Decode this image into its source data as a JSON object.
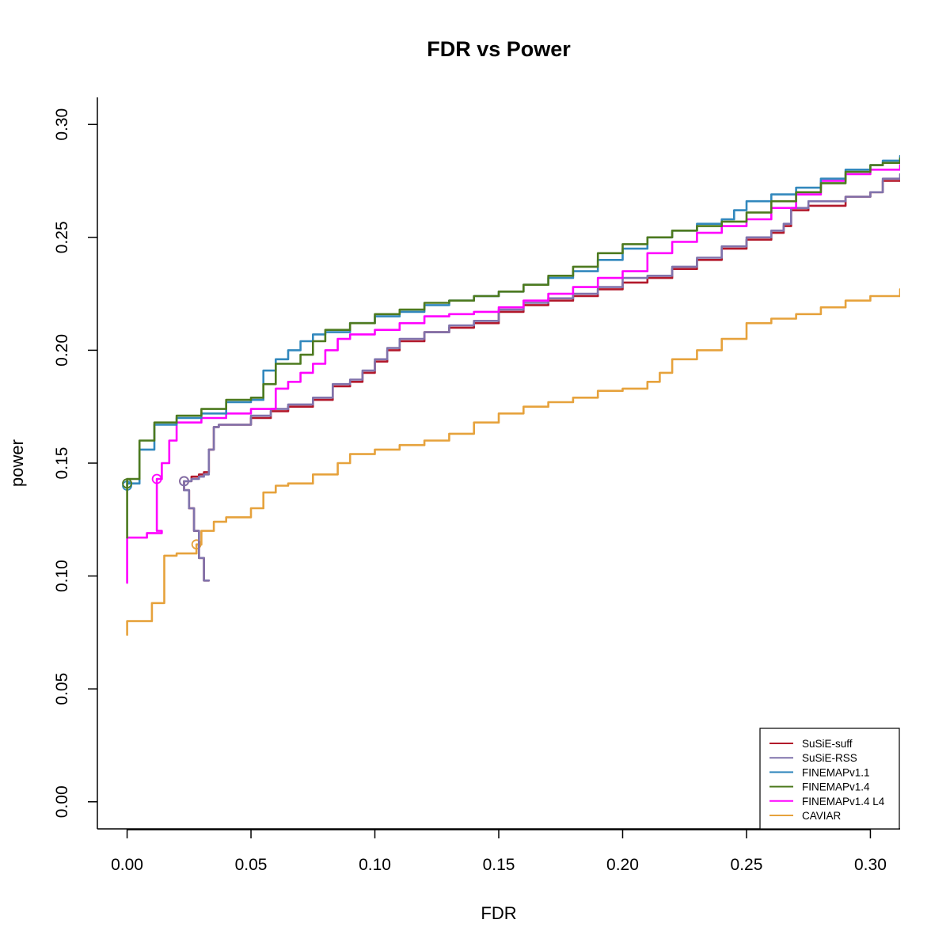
{
  "chart_data": {
    "type": "line",
    "title": "FDR vs Power",
    "xlabel": "FDR",
    "ylabel": "power",
    "xlim": [
      -0.012,
      0.312
    ],
    "ylim": [
      -0.012,
      0.312
    ],
    "xticks": [
      "0.00",
      "0.05",
      "0.10",
      "0.15",
      "0.20",
      "0.25",
      "0.30"
    ],
    "xtick_values": [
      0,
      0.05,
      0.1,
      0.15,
      0.2,
      0.25,
      0.3
    ],
    "yticks": [
      "0.00",
      "0.05",
      "0.10",
      "0.15",
      "0.20",
      "0.25",
      "0.30"
    ],
    "ytick_values": [
      0,
      0.05,
      0.1,
      0.15,
      0.2,
      0.25,
      0.3
    ],
    "grid": false,
    "legend_position": "bottom-right",
    "series": [
      {
        "name": "SuSiE-suff",
        "color": "#b2182b",
        "marker": [
          0.023,
          0.142
        ],
        "x": [
          0.033,
          0.031,
          0.029,
          0.027,
          0.025,
          0.023,
          0.026,
          0.029,
          0.031,
          0.033,
          0.035,
          0.037,
          0.05,
          0.058,
          0.065,
          0.075,
          0.083,
          0.09,
          0.095,
          0.1,
          0.105,
          0.11,
          0.12,
          0.13,
          0.14,
          0.15,
          0.16,
          0.17,
          0.18,
          0.19,
          0.2,
          0.21,
          0.22,
          0.23,
          0.24,
          0.25,
          0.26,
          0.265,
          0.268,
          0.275,
          0.29,
          0.3,
          0.305,
          0.312
        ],
        "y": [
          0.098,
          0.108,
          0.12,
          0.13,
          0.138,
          0.142,
          0.144,
          0.145,
          0.146,
          0.156,
          0.166,
          0.167,
          0.17,
          0.173,
          0.175,
          0.178,
          0.184,
          0.186,
          0.19,
          0.195,
          0.2,
          0.204,
          0.208,
          0.21,
          0.212,
          0.217,
          0.22,
          0.222,
          0.224,
          0.227,
          0.23,
          0.232,
          0.236,
          0.24,
          0.245,
          0.249,
          0.252,
          0.255,
          0.262,
          0.264,
          0.268,
          0.27,
          0.275,
          0.275
        ]
      },
      {
        "name": "SuSiE-RSS",
        "color": "#8073ac",
        "marker": [
          0.023,
          0.142
        ],
        "x": [
          0.033,
          0.031,
          0.029,
          0.027,
          0.025,
          0.023,
          0.026,
          0.029,
          0.031,
          0.033,
          0.035,
          0.037,
          0.05,
          0.058,
          0.065,
          0.075,
          0.083,
          0.09,
          0.095,
          0.1,
          0.105,
          0.11,
          0.12,
          0.13,
          0.14,
          0.15,
          0.16,
          0.17,
          0.18,
          0.19,
          0.2,
          0.21,
          0.22,
          0.23,
          0.24,
          0.25,
          0.26,
          0.265,
          0.268,
          0.275,
          0.29,
          0.3,
          0.305,
          0.312
        ],
        "y": [
          0.098,
          0.108,
          0.12,
          0.13,
          0.138,
          0.142,
          0.143,
          0.144,
          0.145,
          0.156,
          0.166,
          0.167,
          0.171,
          0.174,
          0.176,
          0.179,
          0.185,
          0.187,
          0.191,
          0.196,
          0.201,
          0.205,
          0.208,
          0.211,
          0.213,
          0.218,
          0.221,
          0.223,
          0.225,
          0.228,
          0.232,
          0.233,
          0.237,
          0.241,
          0.246,
          0.25,
          0.253,
          0.256,
          0.263,
          0.266,
          0.268,
          0.27,
          0.276,
          0.278
        ]
      },
      {
        "name": "FINEMAPv1.1",
        "color": "#3288bd",
        "marker": [
          0.0,
          0.14
        ],
        "x": [
          0.0,
          0.0,
          0.005,
          0.011,
          0.02,
          0.03,
          0.04,
          0.05,
          0.055,
          0.06,
          0.065,
          0.07,
          0.075,
          0.08,
          0.09,
          0.1,
          0.11,
          0.12,
          0.13,
          0.14,
          0.15,
          0.16,
          0.17,
          0.18,
          0.19,
          0.2,
          0.21,
          0.22,
          0.23,
          0.24,
          0.245,
          0.25,
          0.26,
          0.27,
          0.28,
          0.29,
          0.3,
          0.305,
          0.312
        ],
        "y": [
          0.14,
          0.141,
          0.156,
          0.167,
          0.17,
          0.172,
          0.177,
          0.178,
          0.191,
          0.196,
          0.2,
          0.204,
          0.207,
          0.208,
          0.212,
          0.215,
          0.217,
          0.22,
          0.222,
          0.224,
          0.226,
          0.229,
          0.232,
          0.235,
          0.24,
          0.245,
          0.25,
          0.253,
          0.256,
          0.258,
          0.262,
          0.266,
          0.269,
          0.272,
          0.276,
          0.28,
          0.282,
          0.284,
          0.286
        ]
      },
      {
        "name": "FINEMAPv1.4",
        "color": "#4d7a1f",
        "marker": [
          0.0,
          0.141
        ],
        "x": [
          0.0,
          0.0,
          0.005,
          0.011,
          0.02,
          0.03,
          0.04,
          0.05,
          0.055,
          0.06,
          0.07,
          0.075,
          0.08,
          0.09,
          0.1,
          0.11,
          0.12,
          0.13,
          0.14,
          0.15,
          0.16,
          0.17,
          0.18,
          0.19,
          0.2,
          0.21,
          0.22,
          0.23,
          0.24,
          0.25,
          0.26,
          0.27,
          0.28,
          0.29,
          0.3,
          0.305,
          0.312
        ],
        "y": [
          0.117,
          0.143,
          0.16,
          0.168,
          0.171,
          0.174,
          0.178,
          0.179,
          0.185,
          0.194,
          0.198,
          0.204,
          0.209,
          0.212,
          0.216,
          0.218,
          0.221,
          0.222,
          0.224,
          0.226,
          0.229,
          0.233,
          0.237,
          0.243,
          0.247,
          0.25,
          0.253,
          0.255,
          0.257,
          0.261,
          0.266,
          0.27,
          0.274,
          0.279,
          0.282,
          0.283,
          0.285
        ]
      },
      {
        "name": "FINEMAPv1.4 L4",
        "color": "#ff00ff",
        "marker": [
          0.012,
          0.143
        ],
        "x": [
          0.0,
          0.0,
          0.0,
          0.008,
          0.014,
          0.012,
          0.014,
          0.017,
          0.02,
          0.03,
          0.04,
          0.05,
          0.06,
          0.065,
          0.07,
          0.075,
          0.08,
          0.085,
          0.09,
          0.1,
          0.11,
          0.12,
          0.13,
          0.14,
          0.15,
          0.16,
          0.17,
          0.18,
          0.19,
          0.2,
          0.21,
          0.22,
          0.23,
          0.24,
          0.25,
          0.26,
          0.27,
          0.28,
          0.29,
          0.3,
          0.312
        ],
        "y": [
          0.097,
          0.105,
          0.117,
          0.119,
          0.12,
          0.143,
          0.15,
          0.16,
          0.168,
          0.17,
          0.172,
          0.174,
          0.183,
          0.186,
          0.19,
          0.194,
          0.2,
          0.205,
          0.207,
          0.209,
          0.212,
          0.215,
          0.216,
          0.217,
          0.219,
          0.222,
          0.225,
          0.228,
          0.232,
          0.235,
          0.243,
          0.248,
          0.252,
          0.255,
          0.258,
          0.263,
          0.269,
          0.275,
          0.278,
          0.28,
          0.282
        ]
      },
      {
        "name": "CAVIAR",
        "color": "#e6a23c",
        "marker": [
          0.028,
          0.114
        ],
        "x": [
          0.0,
          0.0,
          0.01,
          0.015,
          0.02,
          0.028,
          0.03,
          0.035,
          0.04,
          0.05,
          0.055,
          0.06,
          0.065,
          0.075,
          0.085,
          0.09,
          0.1,
          0.11,
          0.12,
          0.13,
          0.14,
          0.15,
          0.16,
          0.17,
          0.18,
          0.19,
          0.2,
          0.21,
          0.215,
          0.22,
          0.23,
          0.24,
          0.25,
          0.26,
          0.27,
          0.28,
          0.29,
          0.3,
          0.312
        ],
        "y": [
          0.074,
          0.08,
          0.088,
          0.109,
          0.11,
          0.114,
          0.12,
          0.124,
          0.126,
          0.13,
          0.137,
          0.14,
          0.141,
          0.145,
          0.15,
          0.154,
          0.156,
          0.158,
          0.16,
          0.163,
          0.168,
          0.172,
          0.175,
          0.177,
          0.179,
          0.182,
          0.183,
          0.186,
          0.19,
          0.196,
          0.2,
          0.205,
          0.212,
          0.214,
          0.216,
          0.219,
          0.222,
          0.224,
          0.227
        ]
      }
    ]
  }
}
